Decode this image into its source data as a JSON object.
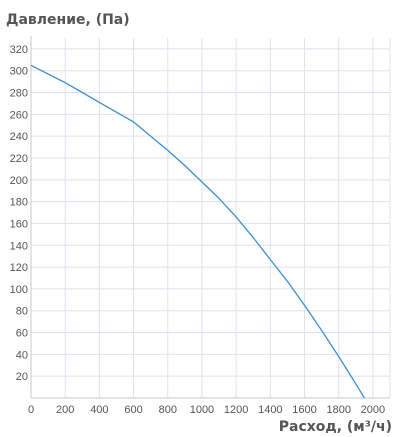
{
  "chart_data": {
    "type": "line",
    "title": "",
    "ylabel": "Давление, (Па)",
    "xlabel": "Расход, (м³/ч)",
    "xlim": [
      0,
      2100
    ],
    "ylim": [
      0,
      330
    ],
    "x_ticks": [
      0,
      200,
      400,
      600,
      800,
      1000,
      1200,
      1400,
      1600,
      1800,
      2000
    ],
    "y_ticks": [
      20,
      40,
      60,
      80,
      100,
      120,
      140,
      160,
      180,
      200,
      220,
      240,
      260,
      280,
      300,
      320
    ],
    "grid": true,
    "colors": {
      "line": "#3f8fd2",
      "grid": "#dde3ee",
      "axis": "#c8c8c8",
      "text": "#555555"
    },
    "series": [
      {
        "x": [
          0,
          100,
          200,
          300,
          400,
          500,
          600,
          700,
          800,
          900,
          1000,
          1100,
          1200,
          1300,
          1400,
          1500,
          1600,
          1700,
          1800,
          1900,
          1950
        ],
        "y": [
          305,
          297,
          289,
          280,
          271,
          262,
          253,
          240,
          227,
          213,
          198,
          183,
          166,
          147,
          127,
          107,
          85,
          62,
          38,
          13,
          0
        ]
      }
    ]
  }
}
